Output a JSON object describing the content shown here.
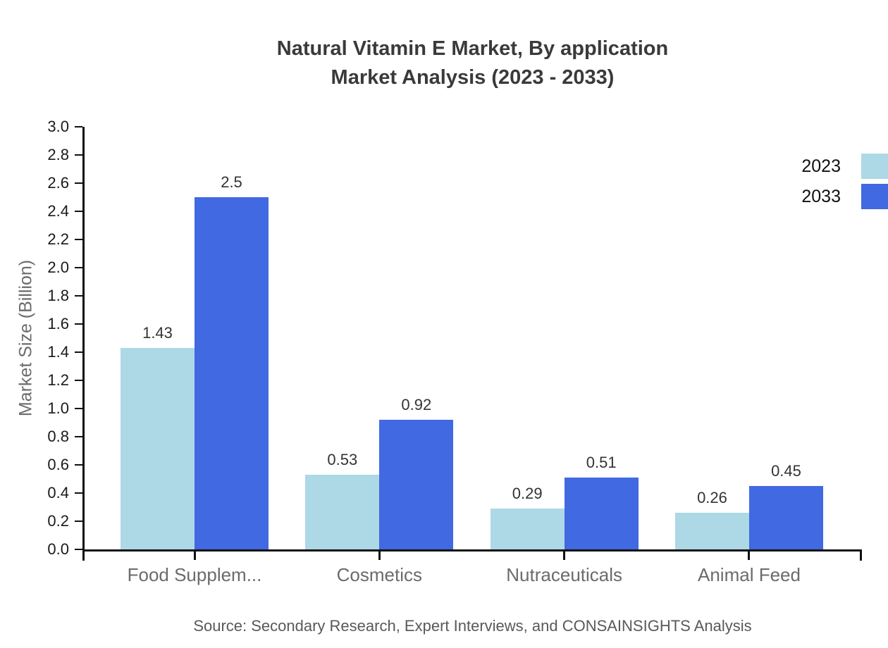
{
  "title": {
    "line1": "Natural Vitamin E Market, By application",
    "line2": "Market Analysis (2023 - 2033)"
  },
  "source_note": "Source: Secondary Research, Expert Interviews, and CONSAINSIGHTS Analysis",
  "chart_data": {
    "type": "bar",
    "title": "Natural Vitamin E Market, By application Market Analysis (2023 - 2033)",
    "categories": [
      "Food Supplem...",
      "Cosmetics",
      "Nutraceuticals",
      "Animal Feed"
    ],
    "series": [
      {
        "name": "2023",
        "color": "#ADD8E6",
        "values": [
          1.43,
          0.53,
          0.29,
          0.26
        ]
      },
      {
        "name": "2033",
        "color": "#4169E1",
        "values": [
          2.5,
          0.92,
          0.51,
          0.45
        ]
      }
    ],
    "xlabel": "",
    "ylabel": "Market Size (Billion)",
    "ylim": [
      0,
      3.0
    ],
    "ytick_step": 0.2,
    "grid": false,
    "legend_position": "top-right",
    "axis_color": "#111111",
    "value_label_color": "#333333"
  }
}
